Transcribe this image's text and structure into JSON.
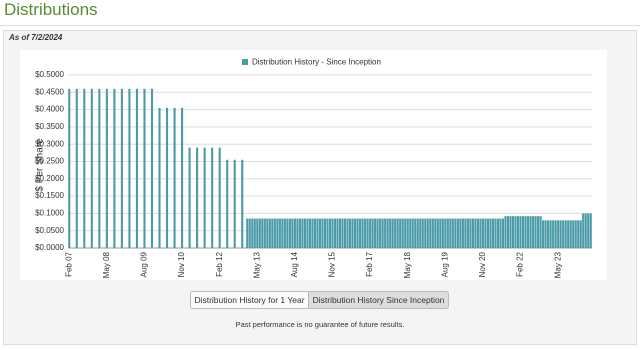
{
  "header": {
    "title": "Distributions",
    "as_of": "As of 7/2/2024"
  },
  "chart_data": {
    "type": "bar",
    "y_label": "$ Per Share",
    "legend_position": "top",
    "grid": true,
    "ylim": [
      0,
      0.5
    ],
    "yticks": [
      {
        "value": 0,
        "label": "$0.0000"
      },
      {
        "value": 0.05,
        "label": "$0.0500"
      },
      {
        "value": 0.1,
        "label": "$0.1000"
      },
      {
        "value": 0.15,
        "label": "$0.1500"
      },
      {
        "value": 0.2,
        "label": "$0.2000"
      },
      {
        "value": 0.25,
        "label": "$0.2500"
      },
      {
        "value": 0.3,
        "label": "$0.3000"
      },
      {
        "value": 0.35,
        "label": "$0.3500"
      },
      {
        "value": 0.4,
        "label": "$0.4000"
      },
      {
        "value": 0.45,
        "label": "$0.4500"
      },
      {
        "value": 0.5,
        "label": "$0.5000"
      }
    ],
    "categories": [
      "Feb 07",
      null,
      null,
      null,
      null,
      null,
      null,
      null,
      null,
      null,
      null,
      null,
      null,
      null,
      null,
      "May 08",
      null,
      null,
      null,
      null,
      null,
      null,
      null,
      null,
      null,
      null,
      null,
      null,
      null,
      null,
      "Aug 09",
      null,
      null,
      null,
      null,
      null,
      null,
      null,
      null,
      null,
      null,
      null,
      null,
      null,
      null,
      "Nov 10",
      null,
      null,
      null,
      null,
      null,
      null,
      null,
      null,
      null,
      null,
      null,
      null,
      null,
      null,
      "Feb 12",
      null,
      null,
      null,
      null,
      null,
      null,
      null,
      null,
      null,
      null,
      null,
      null,
      null,
      null,
      "May 13",
      null,
      null,
      null,
      null,
      null,
      null,
      null,
      null,
      null,
      null,
      null,
      null,
      null,
      null,
      "Aug 14",
      null,
      null,
      null,
      null,
      null,
      null,
      null,
      null,
      null,
      null,
      null,
      null,
      null,
      null,
      "Nov 15",
      null,
      null,
      null,
      null,
      null,
      null,
      null,
      null,
      null,
      null,
      null,
      null,
      null,
      null,
      "Feb 17",
      null,
      null,
      null,
      null,
      null,
      null,
      null,
      null,
      null,
      null,
      null,
      null,
      null,
      null,
      "May 18",
      null,
      null,
      null,
      null,
      null,
      null,
      null,
      null,
      null,
      null,
      null,
      null,
      null,
      null,
      "Aug 19",
      null,
      null,
      null,
      null,
      null,
      null,
      null,
      null,
      null,
      null,
      null,
      null,
      null,
      null,
      "Nov 20",
      null,
      null,
      null,
      null,
      null,
      null,
      null,
      null,
      null,
      null,
      null,
      null,
      null,
      null,
      "Feb 22",
      null,
      null,
      null,
      null,
      null,
      null,
      null,
      null,
      null,
      null,
      null,
      null,
      null,
      null,
      "May 23",
      null,
      null,
      null,
      null,
      null,
      null,
      null,
      null,
      null,
      null,
      null,
      null,
      null
    ],
    "series": [
      {
        "name": "Distribution History - Since Inception",
        "color": "#4a9aa8",
        "values": [
          0.46,
          null,
          null,
          0.46,
          null,
          null,
          0.46,
          null,
          null,
          0.46,
          null,
          null,
          0.46,
          null,
          null,
          0.46,
          null,
          null,
          0.46,
          null,
          null,
          0.46,
          null,
          null,
          0.46,
          null,
          null,
          0.46,
          null,
          null,
          0.46,
          null,
          null,
          0.46,
          null,
          null,
          0.405,
          null,
          null,
          0.405,
          null,
          null,
          0.405,
          null,
          null,
          0.405,
          null,
          null,
          0.29,
          null,
          null,
          0.29,
          null,
          null,
          0.29,
          null,
          null,
          0.29,
          null,
          null,
          0.29,
          null,
          null,
          0.255,
          null,
          null,
          0.255,
          null,
          null,
          0.255,
          null,
          0.085,
          0.085,
          0.085,
          0.085,
          0.085,
          0.085,
          0.085,
          0.085,
          0.085,
          0.085,
          0.085,
          0.085,
          0.085,
          0.085,
          0.085,
          0.085,
          0.085,
          0.085,
          0.085,
          0.085,
          0.085,
          0.085,
          0.085,
          0.085,
          0.085,
          0.085,
          0.085,
          0.085,
          0.085,
          0.085,
          0.085,
          0.085,
          0.085,
          0.085,
          0.085,
          0.085,
          0.085,
          0.085,
          0.085,
          0.085,
          0.085,
          0.085,
          0.085,
          0.085,
          0.085,
          0.085,
          0.085,
          0.085,
          0.085,
          0.085,
          0.085,
          0.085,
          0.085,
          0.085,
          0.085,
          0.085,
          0.085,
          0.085,
          0.085,
          0.085,
          0.085,
          0.085,
          0.085,
          0.085,
          0.085,
          0.085,
          0.085,
          0.085,
          0.085,
          0.085,
          0.085,
          0.085,
          0.085,
          0.085,
          0.085,
          0.085,
          0.085,
          0.085,
          0.085,
          0.085,
          0.085,
          0.085,
          0.085,
          0.085,
          0.085,
          0.085,
          0.085,
          0.085,
          0.085,
          0.085,
          0.085,
          0.085,
          0.085,
          0.085,
          0.085,
          0.085,
          0.085,
          0.085,
          0.085,
          0.085,
          0.085,
          0.085,
          0.085,
          0.092,
          0.092,
          0.092,
          0.092,
          0.092,
          0.092,
          0.092,
          0.092,
          0.092,
          0.092,
          0.092,
          0.092,
          0.092,
          0.092,
          0.092,
          0.08,
          0.08,
          0.08,
          0.08,
          0.08,
          0.08,
          0.08,
          0.08,
          0.08,
          0.08,
          0.08,
          0.08,
          0.08,
          0.08,
          0.08,
          0.08,
          0.1,
          0.1,
          0.1,
          0.1
        ]
      }
    ]
  },
  "buttons": [
    "Distribution History for 1 Year",
    "Distribution History Since Inception"
  ],
  "footnote": "Past performance is no guarantee of future results."
}
